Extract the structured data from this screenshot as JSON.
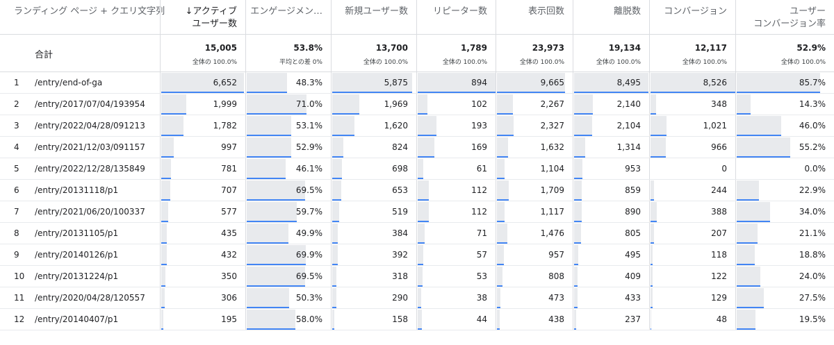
{
  "header": {
    "dimension_label": "ランディング ページ + クエリ文字列",
    "sort_arrow": "↓",
    "metrics": [
      {
        "line1": "アクティブ",
        "line2": "ユーザー数",
        "sorted": true
      },
      {
        "line1": "エンゲージメン…",
        "line2": ""
      },
      {
        "line1": "新規ユーザー数",
        "line2": ""
      },
      {
        "line1": "リピーター数",
        "line2": ""
      },
      {
        "line1": "表示回数",
        "line2": ""
      },
      {
        "line1": "離脱数",
        "line2": ""
      },
      {
        "line1": "コンバージョン",
        "line2": ""
      },
      {
        "line1": "ユーザー",
        "line2": "コンバージョン率"
      }
    ]
  },
  "totals": {
    "label": "合計",
    "values": [
      "15,005",
      "53.8%",
      "13,700",
      "1,789",
      "23,973",
      "19,134",
      "12,117",
      "52.9%"
    ],
    "subs": [
      "全体の 100.0%",
      "平均との差 0%",
      "全体の 100.0%",
      "全体の 100.0%",
      "全体の 100.0%",
      "全体の 100.0%",
      "全体の 100.0%",
      "全体の 100.0%"
    ]
  },
  "rows": [
    {
      "rank": "1",
      "page": "/entry/end-of-ga",
      "values": [
        "6,652",
        "48.3%",
        "5,875",
        "894",
        "9,665",
        "8,495",
        "8,526",
        "85.7%"
      ]
    },
    {
      "rank": "2",
      "page": "/entry/2017/07/04/193954",
      "values": [
        "1,999",
        "71.0%",
        "1,969",
        "102",
        "2,267",
        "2,140",
        "348",
        "14.3%"
      ]
    },
    {
      "rank": "3",
      "page": "/entry/2022/04/28/091213",
      "values": [
        "1,782",
        "53.1%",
        "1,620",
        "193",
        "2,327",
        "2,104",
        "1,021",
        "46.0%"
      ]
    },
    {
      "rank": "4",
      "page": "/entry/2021/12/03/091157",
      "values": [
        "997",
        "52.9%",
        "824",
        "169",
        "1,632",
        "1,314",
        "966",
        "55.2%"
      ]
    },
    {
      "rank": "5",
      "page": "/entry/2022/12/28/135849",
      "values": [
        "781",
        "46.1%",
        "698",
        "61",
        "1,104",
        "953",
        "0",
        "0.0%"
      ]
    },
    {
      "rank": "6",
      "page": "/entry/20131118/p1",
      "values": [
        "707",
        "69.5%",
        "653",
        "112",
        "1,709",
        "859",
        "244",
        "22.9%"
      ]
    },
    {
      "rank": "7",
      "page": "/entry/2021/06/20/100337",
      "values": [
        "577",
        "59.7%",
        "519",
        "112",
        "1,117",
        "890",
        "388",
        "34.0%"
      ]
    },
    {
      "rank": "8",
      "page": "/entry/20131105/p1",
      "values": [
        "435",
        "49.9%",
        "384",
        "71",
        "1,476",
        "805",
        "207",
        "21.1%"
      ]
    },
    {
      "rank": "9",
      "page": "/entry/20140126/p1",
      "values": [
        "432",
        "69.9%",
        "392",
        "57",
        "957",
        "495",
        "118",
        "18.8%"
      ]
    },
    {
      "rank": "10",
      "page": "/entry/20131224/p1",
      "values": [
        "350",
        "69.5%",
        "318",
        "53",
        "808",
        "409",
        "122",
        "24.0%"
      ]
    },
    {
      "rank": "11",
      "page": "/entry/2020/04/28/120557",
      "values": [
        "306",
        "50.3%",
        "290",
        "38",
        "473",
        "433",
        "129",
        "27.5%"
      ]
    },
    {
      "rank": "12",
      "page": "/entry/20140407/p1",
      "values": [
        "195",
        "58.0%",
        "158",
        "44",
        "438",
        "237",
        "48",
        "19.5%"
      ]
    }
  ],
  "colors": {
    "bar": "#e8eaed",
    "underline": "#4285f4",
    "divider": "#dadce0"
  }
}
